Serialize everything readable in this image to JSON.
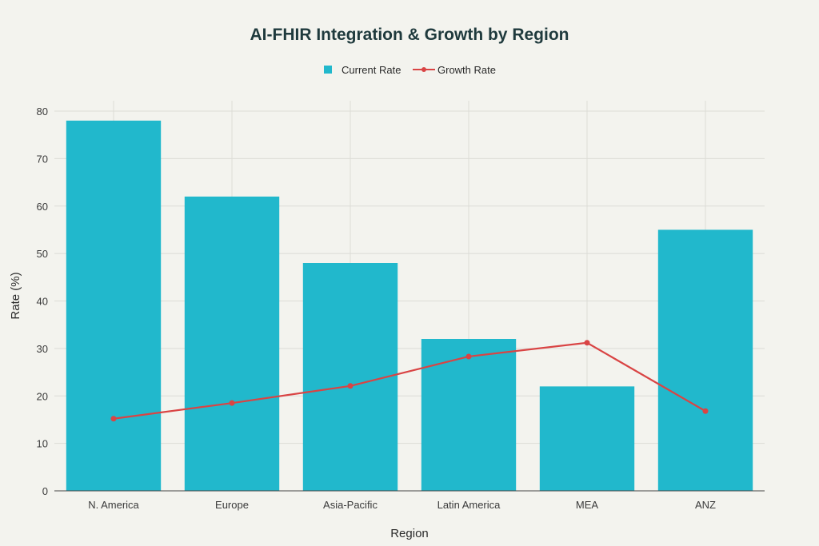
{
  "chart_data": {
    "type": "bar",
    "title": "AI-FHIR Integration & Growth by Region",
    "xlabel": "Region",
    "ylabel": "Rate (%)",
    "categories": [
      "N. America",
      "Europe",
      "Asia-Pacific",
      "Latin America",
      "MEA",
      "ANZ"
    ],
    "series": [
      {
        "name": "Current Rate",
        "kind": "bar",
        "color": "#21b8cc",
        "values": [
          78,
          62,
          48,
          32,
          22,
          55
        ]
      },
      {
        "name": "Growth Rate",
        "kind": "line",
        "color": "#d94444",
        "values": [
          15.2,
          18.5,
          22.1,
          28.3,
          31.2,
          16.8
        ]
      }
    ],
    "ylim": [
      0,
      80
    ],
    "yticks": [
      0,
      10,
      20,
      30,
      40,
      50,
      60,
      70,
      80
    ],
    "grid": true,
    "legend_position": "top-center"
  }
}
